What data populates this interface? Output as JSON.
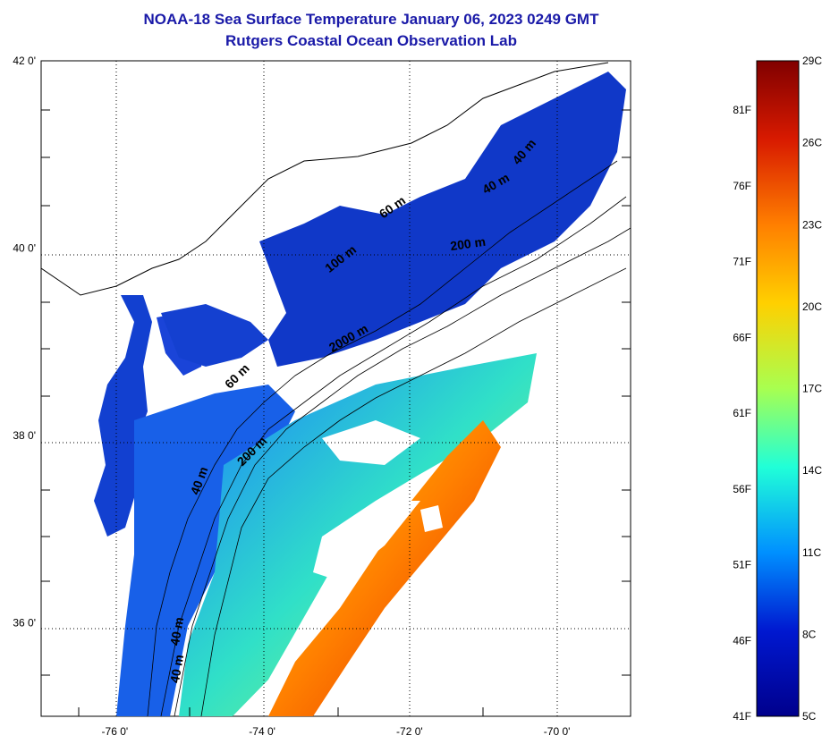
{
  "title": {
    "line1": "NOAA-18 Sea Surface Temperature January 06, 2023 0249 GMT",
    "line2": "Rutgers Coastal Ocean Observation Lab"
  },
  "map": {
    "lon_range": [
      -77,
      -69
    ],
    "lat_range": [
      35,
      42
    ],
    "lat_ticks": [
      {
        "value": 42,
        "label": "42 0'"
      },
      {
        "value": 40,
        "label": "40 0'"
      },
      {
        "value": 38,
        "label": "38 0'"
      },
      {
        "value": 36,
        "label": "36 0'"
      }
    ],
    "lon_ticks": [
      {
        "value": -76,
        "label": "-76 0'"
      },
      {
        "value": -74,
        "label": "-74 0'"
      },
      {
        "value": -72,
        "label": "-72 0'"
      },
      {
        "value": -70,
        "label": "-70 0'"
      }
    ],
    "contour_labels": [
      {
        "text": "100 m",
        "lon": -72.9,
        "lat": 39.85,
        "angle": -38
      },
      {
        "text": "200 m",
        "lon": -71.2,
        "lat": 40.0,
        "angle": -8
      },
      {
        "text": "2000 m",
        "lon": -72.8,
        "lat": 39.0,
        "angle": -30
      },
      {
        "text": "60 m",
        "lon": -74.3,
        "lat": 38.6,
        "angle": -45
      },
      {
        "text": "200 m",
        "lon": -74.1,
        "lat": 37.8,
        "angle": -45
      },
      {
        "text": "40 m",
        "lon": -74.8,
        "lat": 37.5,
        "angle": -70
      },
      {
        "text": "40 m",
        "lon": -75.1,
        "lat": 35.9,
        "angle": -80
      },
      {
        "text": "40 m",
        "lon": -75.1,
        "lat": 35.5,
        "angle": -80
      },
      {
        "text": "60 m",
        "lon": -72.2,
        "lat": 40.4,
        "angle": -35
      },
      {
        "text": "40 m",
        "lon": -70.4,
        "lat": 41.0,
        "angle": -50
      },
      {
        "text": "40 m",
        "lon": -70.8,
        "lat": 40.65,
        "angle": -30
      }
    ]
  },
  "colorbar": {
    "celsius_labels": [
      "29C",
      "26C",
      "23C",
      "20C",
      "17C",
      "14C",
      "11C",
      "8C",
      "5C"
    ],
    "fahrenheit_labels": [
      "81F",
      "76F",
      "71F",
      "66F",
      "61F",
      "56F",
      "51F",
      "46F",
      "41F"
    ],
    "colors": [
      "#800000",
      "#d81a00",
      "#ff7f00",
      "#ffd000",
      "#a8ff50",
      "#20ffd8",
      "#0090ff",
      "#0018d0",
      "#00008c"
    ]
  }
}
